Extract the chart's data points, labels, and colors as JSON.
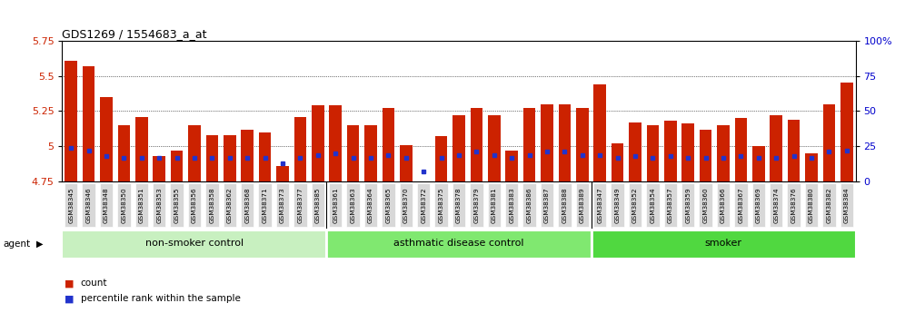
{
  "title": "GDS1269 / 1554683_a_at",
  "ylim": [
    4.75,
    5.75
  ],
  "yticks": [
    4.75,
    5.0,
    5.25,
    5.5,
    5.75
  ],
  "ytick_labels": [
    "4.75",
    "5",
    "5.25",
    "5.5",
    "5.75"
  ],
  "right_ylim": [
    0,
    100
  ],
  "right_yticks": [
    0,
    25,
    50,
    75,
    100
  ],
  "right_yticklabels": [
    "0",
    "25",
    "50",
    "75",
    "100%"
  ],
  "bar_color": "#cc2200",
  "dot_color": "#2233cc",
  "categories": [
    "GSM38345",
    "GSM38346",
    "GSM38348",
    "GSM38350",
    "GSM38351",
    "GSM38353",
    "GSM38355",
    "GSM38356",
    "GSM38358",
    "GSM38362",
    "GSM38368",
    "GSM38371",
    "GSM38373",
    "GSM38377",
    "GSM38385",
    "GSM38361",
    "GSM38363",
    "GSM38364",
    "GSM38365",
    "GSM38370",
    "GSM38372",
    "GSM38375",
    "GSM38378",
    "GSM38379",
    "GSM38381",
    "GSM38383",
    "GSM38386",
    "GSM38387",
    "GSM38388",
    "GSM38389",
    "GSM38347",
    "GSM38349",
    "GSM38352",
    "GSM38354",
    "GSM38357",
    "GSM38359",
    "GSM38360",
    "GSM38366",
    "GSM38367",
    "GSM38369",
    "GSM38374",
    "GSM38376",
    "GSM38380",
    "GSM38382",
    "GSM38384"
  ],
  "bar_values": [
    5.61,
    5.57,
    5.35,
    5.15,
    5.21,
    4.93,
    4.97,
    5.15,
    5.08,
    5.08,
    5.12,
    5.1,
    4.86,
    5.21,
    5.29,
    5.29,
    5.15,
    5.15,
    5.27,
    5.01,
    4.75,
    5.07,
    5.22,
    5.27,
    5.22,
    4.97,
    5.27,
    5.3,
    5.3,
    5.27,
    5.44,
    5.02,
    5.17,
    5.15,
    5.18,
    5.16,
    5.12,
    5.15,
    5.2,
    5.0,
    5.22,
    5.19,
    4.95,
    5.3,
    5.45
  ],
  "percentile_values": [
    4.99,
    4.97,
    4.93,
    4.92,
    4.92,
    4.92,
    4.92,
    4.92,
    4.92,
    4.92,
    4.92,
    4.92,
    4.88,
    4.92,
    4.94,
    4.95,
    4.92,
    4.92,
    4.94,
    4.92,
    4.82,
    4.92,
    4.94,
    4.96,
    4.94,
    4.92,
    4.94,
    4.96,
    4.96,
    4.94,
    4.94,
    4.92,
    4.93,
    4.92,
    4.93,
    4.92,
    4.92,
    4.92,
    4.93,
    4.92,
    4.92,
    4.93,
    4.92,
    4.96,
    4.97
  ],
  "groups": [
    {
      "label": "non-smoker control",
      "start": 0,
      "end": 14,
      "color": "#c8f0c0"
    },
    {
      "label": "asthmatic disease control",
      "start": 15,
      "end": 29,
      "color": "#80e870"
    },
    {
      "label": "smoker",
      "start": 30,
      "end": 44,
      "color": "#50d840"
    }
  ],
  "group_dividers": [
    14.5,
    29.5
  ],
  "agent_label": "agent",
  "legend_count_label": "count",
  "legend_count_color": "#cc2200",
  "legend_pct_label": "percentile rank within the sample",
  "legend_pct_color": "#2233cc",
  "grid_levels": [
    5.0,
    5.25,
    5.5
  ],
  "bar_width": 0.7
}
